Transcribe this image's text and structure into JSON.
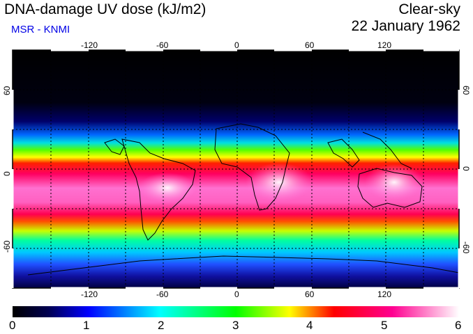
{
  "header": {
    "title": "DNA-damage UV dose (kJ/m2)",
    "credit": "MSR - KNMI",
    "condition": "Clear-sky",
    "date": "22 January 1962"
  },
  "map": {
    "lon_ticks": [
      "-120",
      "-60",
      "0",
      "60",
      "120"
    ],
    "lat_ticks": [
      "60",
      "0",
      "-60"
    ]
  },
  "colorbar": {
    "labels": [
      "0",
      "1",
      "2",
      "3",
      "4",
      "5",
      "6"
    ],
    "colors": [
      "#000000",
      "#000050",
      "#0000ff",
      "#00ffff",
      "#00ff00",
      "#ffff00",
      "#ff0000",
      "#ff00a0",
      "#ffffff"
    ]
  }
}
